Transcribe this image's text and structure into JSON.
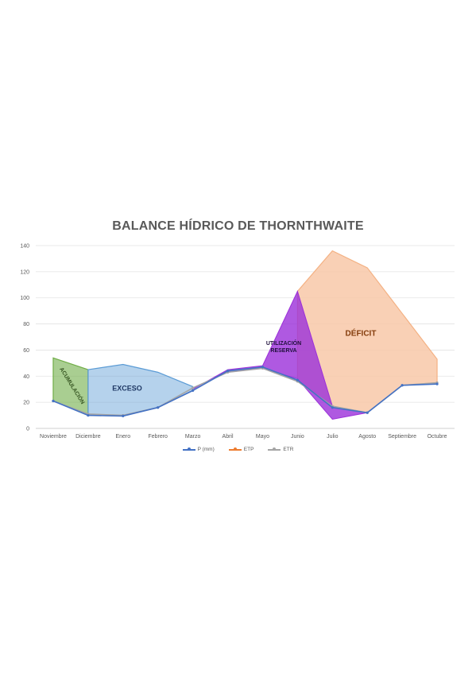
{
  "chart_data": {
    "type": "line",
    "title": "BALANCE HÍDRICO DE THORNTHWAITE",
    "categories": [
      "Noviembre",
      "Diciembre",
      "Enero",
      "Febrero",
      "Marzo",
      "Abril",
      "Mayo",
      "Junio",
      "Julio",
      "Agosto",
      "Septiembre",
      "Octubre"
    ],
    "yticks": [
      0,
      20,
      40,
      60,
      80,
      100,
      120,
      140
    ],
    "ylim": [
      0,
      140
    ],
    "grid": true,
    "legend_position": "bottom",
    "series": [
      {
        "name": "P (mm)",
        "color": "#4472c4",
        "values": [
          21,
          10,
          9.5,
          16,
          29,
          44,
          47,
          37,
          16,
          12,
          33,
          34
        ]
      },
      {
        "name": "ETP",
        "color": "#ed7d31",
        "values": [
          54,
          45,
          49,
          43,
          32,
          44,
          47,
          105,
          136,
          123,
          88,
          53
        ]
      },
      {
        "name": "ETR",
        "color": "#a5a5a5",
        "values": [
          21,
          11,
          10,
          16,
          31,
          43,
          46,
          36,
          17,
          12,
          33,
          35
        ]
      }
    ],
    "regions": [
      {
        "label": "ACUMULACIÓN",
        "color": "#70ad47"
      },
      {
        "label": "EXCESO",
        "color": "#5b9bd5"
      },
      {
        "label": "UTILIZACIÓN RESERVA",
        "color": "#9b30d9"
      },
      {
        "label": "DÉFICIT",
        "color": "#f8c8a8"
      }
    ]
  }
}
